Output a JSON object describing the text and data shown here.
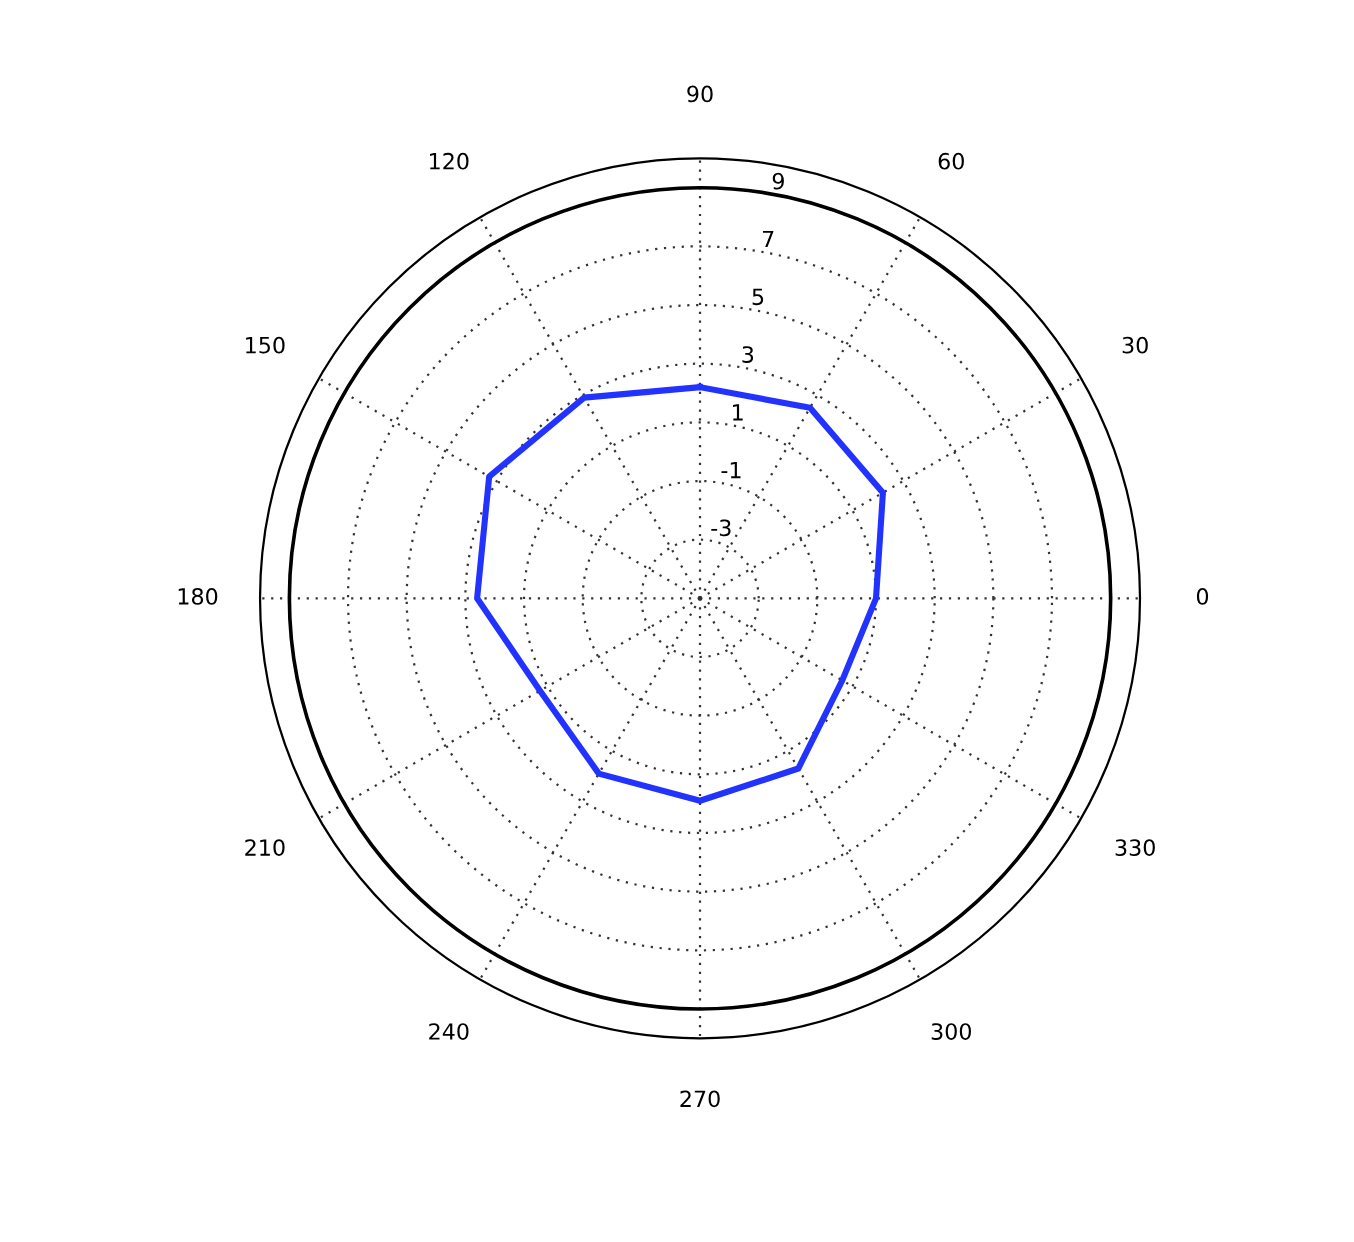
{
  "chart_data": {
    "type": "radar",
    "categories": [
      "90",
      "60",
      "30",
      "0",
      "330",
      "300",
      "270",
      "240",
      "210",
      "180",
      "150",
      "120"
    ],
    "series": [
      {
        "color": "#2233ff",
        "values": [
          2.2,
          2.5,
          2.2,
          1.0,
          0.6,
          1.7,
          1.9,
          1.9,
          1.3,
          2.6,
          3.3,
          2.9
        ]
      }
    ],
    "ylim": [
      -5,
      10
    ],
    "yticks": [
      -3,
      -1,
      1,
      3,
      5,
      7,
      9
    ],
    "grid": true,
    "line_style": "solid",
    "marker": "none"
  }
}
